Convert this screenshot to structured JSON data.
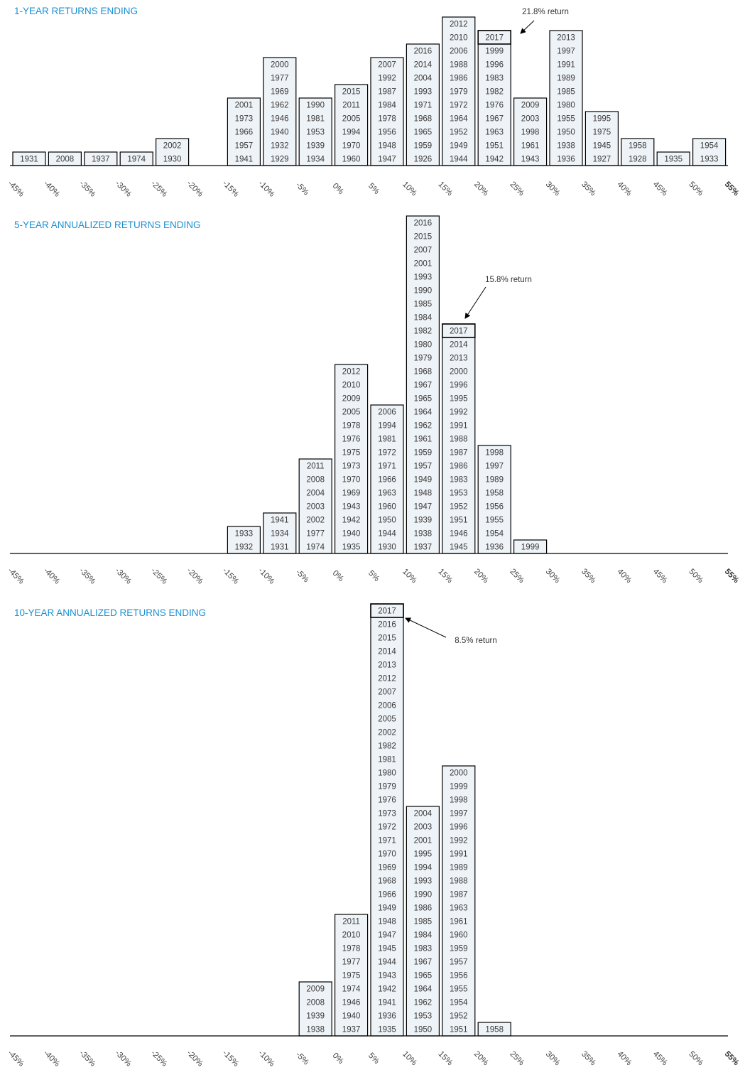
{
  "colors": {
    "title": "#1a8fd1",
    "bar_fill": "#eef3f7",
    "bar_stroke": "#000000",
    "axis": "#000000"
  },
  "chart_data": [
    {
      "type": "bar",
      "title": "1-YEAR RETURNS ENDING",
      "x_ticks": [
        "-45%",
        "-40%",
        "-35%",
        "-30%",
        "-25%",
        "-20%",
        "-15%",
        "-10%",
        "-5%",
        "0%",
        "5%",
        "10%",
        "15%",
        "20%",
        "25%",
        "30%",
        "35%",
        "40%",
        "45%",
        "50%",
        "55%"
      ],
      "bins": [
        {
          "from": -45,
          "years": [
            "1931"
          ]
        },
        {
          "from": -40,
          "years": [
            "2008"
          ]
        },
        {
          "from": -35,
          "years": [
            "1937"
          ]
        },
        {
          "from": -30,
          "years": [
            "1974"
          ]
        },
        {
          "from": -25,
          "years": [
            "1930",
            "2002"
          ]
        },
        {
          "from": -20,
          "years": []
        },
        {
          "from": -15,
          "years": [
            "1941",
            "1957",
            "1966",
            "1973",
            "2001"
          ]
        },
        {
          "from": -10,
          "years": [
            "1929",
            "1932",
            "1940",
            "1946",
            "1962",
            "1969",
            "1977",
            "2000"
          ]
        },
        {
          "from": -5,
          "years": [
            "1934",
            "1939",
            "1953",
            "1981",
            "1990"
          ]
        },
        {
          "from": 0,
          "years": [
            "1960",
            "1970",
            "1994",
            "2005",
            "2011",
            "2015"
          ]
        },
        {
          "from": 5,
          "years": [
            "1947",
            "1948",
            "1956",
            "1978",
            "1984",
            "1987",
            "1992",
            "2007"
          ]
        },
        {
          "from": 10,
          "years": [
            "1926",
            "1959",
            "1965",
            "1968",
            "1971",
            "1993",
            "2004",
            "2014",
            "2016"
          ]
        },
        {
          "from": 15,
          "years": [
            "1944",
            "1949",
            "1952",
            "1964",
            "1972",
            "1979",
            "1986",
            "1988",
            "2006",
            "2010",
            "2012"
          ]
        },
        {
          "from": 20,
          "years": [
            "1942",
            "1951",
            "1963",
            "1967",
            "1976",
            "1982",
            "1983",
            "1996",
            "1999",
            "2017"
          ],
          "highlight": "2017"
        },
        {
          "from": 25,
          "years": [
            "1943",
            "1961",
            "1998",
            "2003",
            "2009"
          ]
        },
        {
          "from": 30,
          "years": [
            "1936",
            "1938",
            "1950",
            "1955",
            "1980",
            "1985",
            "1989",
            "1991",
            "1997",
            "2013"
          ]
        },
        {
          "from": 35,
          "years": [
            "1927",
            "1945",
            "1975",
            "1995"
          ]
        },
        {
          "from": 40,
          "years": [
            "1928",
            "1958"
          ]
        },
        {
          "from": 45,
          "years": [
            "1935"
          ]
        },
        {
          "from": 50,
          "years": [
            "1933",
            "1954"
          ]
        }
      ],
      "annotation": {
        "text": "21.8% return",
        "year": "2017"
      }
    },
    {
      "type": "bar",
      "title": "5-YEAR ANNUALIZED RETURNS ENDING",
      "x_ticks": [
        "-45%",
        "-40%",
        "-35%",
        "-30%",
        "-25%",
        "-20%",
        "-15%",
        "-10%",
        "-5%",
        "0%",
        "5%",
        "10%",
        "15%",
        "20%",
        "25%",
        "30%",
        "35%",
        "40%",
        "45%",
        "50%",
        "55%"
      ],
      "bins": [
        {
          "from": -15,
          "years": [
            "1932",
            "1933"
          ]
        },
        {
          "from": -10,
          "years": [
            "1931",
            "1934",
            "1941"
          ]
        },
        {
          "from": -5,
          "years": [
            "1974",
            "1977",
            "2002",
            "2003",
            "2004",
            "2008",
            "2011"
          ]
        },
        {
          "from": 0,
          "years": [
            "1935",
            "1940",
            "1942",
            "1943",
            "1969",
            "1970",
            "1973",
            "1975",
            "1976",
            "1978",
            "2005",
            "2009",
            "2010",
            "2012"
          ]
        },
        {
          "from": 5,
          "years": [
            "1930",
            "1944",
            "1950",
            "1960",
            "1963",
            "1966",
            "1971",
            "1972",
            "1981",
            "1994",
            "2006"
          ]
        },
        {
          "from": 10,
          "years": [
            "1937",
            "1938",
            "1939",
            "1947",
            "1948",
            "1949",
            "1957",
            "1959",
            "1961",
            "1962",
            "1964",
            "1965",
            "1967",
            "1968",
            "1979",
            "1980",
            "1982",
            "1984",
            "1985",
            "1990",
            "1993",
            "2001",
            "2007",
            "2015",
            "2016"
          ]
        },
        {
          "from": 15,
          "years": [
            "1945",
            "1946",
            "1951",
            "1952",
            "1953",
            "1983",
            "1986",
            "1987",
            "1988",
            "1991",
            "1992",
            "1995",
            "1996",
            "2000",
            "2013",
            "2014",
            "2017"
          ],
          "highlight": "2017"
        },
        {
          "from": 20,
          "years": [
            "1936",
            "1954",
            "1955",
            "1956",
            "1958",
            "1989",
            "1997",
            "1998"
          ]
        },
        {
          "from": 25,
          "years": [
            "1999"
          ]
        }
      ],
      "annotation": {
        "text": "15.8% return",
        "year": "2017"
      }
    },
    {
      "type": "bar",
      "title": "10-YEAR ANNUALIZED RETURNS ENDING",
      "x_ticks": [
        "-45%",
        "-40%",
        "-35%",
        "-30%",
        "-25%",
        "-20%",
        "-15%",
        "-10%",
        "-5%",
        "0%",
        "5%",
        "10%",
        "15%",
        "20%",
        "25%",
        "30%",
        "35%",
        "40%",
        "45%",
        "50%",
        "55%"
      ],
      "bins": [
        {
          "from": -5,
          "years": [
            "1938",
            "1939",
            "2008",
            "2009"
          ]
        },
        {
          "from": 0,
          "years": [
            "1937",
            "1940",
            "1946",
            "1974",
            "1975",
            "1977",
            "1978",
            "2010",
            "2011"
          ]
        },
        {
          "from": 5,
          "years": [
            "1935",
            "1936",
            "1941",
            "1942",
            "1943",
            "1944",
            "1945",
            "1947",
            "1948",
            "1949",
            "1966",
            "1968",
            "1969",
            "1970",
            "1971",
            "1972",
            "1973",
            "1976",
            "1979",
            "1980",
            "1981",
            "1982",
            "2002",
            "2005",
            "2006",
            "2007",
            "2012",
            "2013",
            "2014",
            "2015",
            "2016",
            "2017"
          ],
          "highlight": "2017"
        },
        {
          "from": 10,
          "years": [
            "1950",
            "1953",
            "1962",
            "1964",
            "1965",
            "1967",
            "1983",
            "1984",
            "1985",
            "1986",
            "1990",
            "1993",
            "1994",
            "1995",
            "2001",
            "2003",
            "2004"
          ]
        },
        {
          "from": 15,
          "years": [
            "1951",
            "1952",
            "1954",
            "1955",
            "1956",
            "1957",
            "1959",
            "1960",
            "1961",
            "1963",
            "1987",
            "1988",
            "1989",
            "1991",
            "1992",
            "1996",
            "1997",
            "1998",
            "1999",
            "2000"
          ]
        },
        {
          "from": 20,
          "years": [
            "1958"
          ]
        }
      ],
      "annotation": {
        "text": "8.5% return",
        "year": "2017"
      }
    }
  ]
}
